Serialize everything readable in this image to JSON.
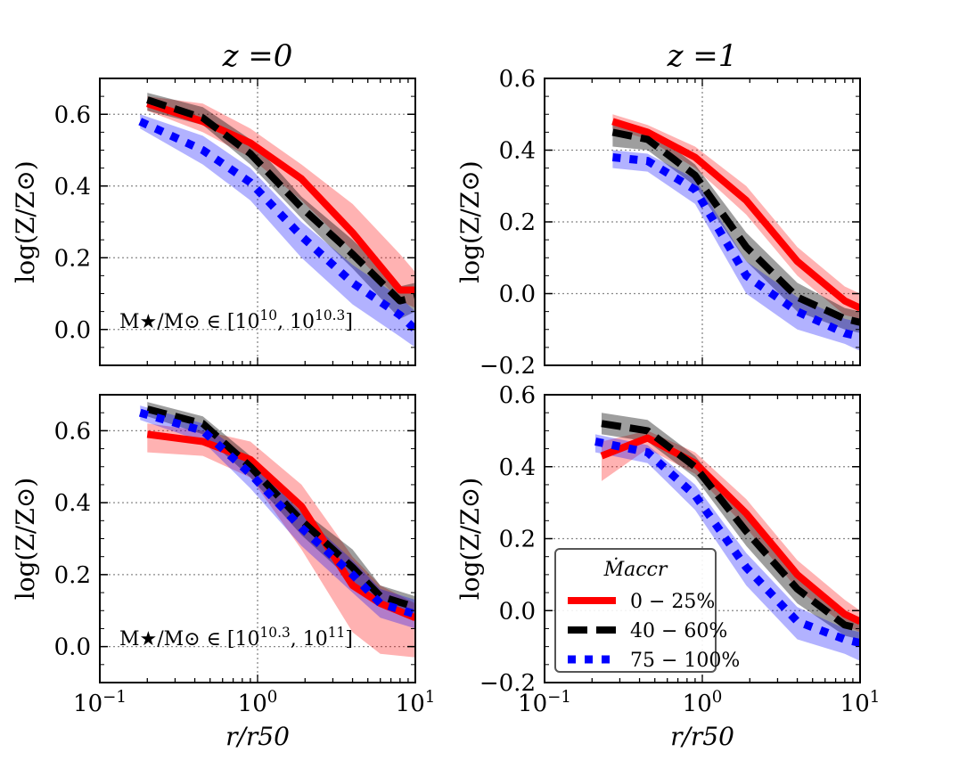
{
  "chart_data": [
    {
      "type": "line",
      "title": "z =0",
      "xlabel": "",
      "ylabel": "log(Z/Z⊙)",
      "xscale": "log",
      "xlim": [
        0.1,
        10
      ],
      "ylim": [
        -0.1,
        0.7
      ],
      "yticks": [
        0.0,
        0.2,
        0.4,
        0.6
      ],
      "ytick_labels": [
        "0.0",
        "0.2",
        "0.4",
        "0.6"
      ],
      "annotation": "M★/M⊙ ∈ [10^10, 10^10.3]",
      "series": [
        {
          "name": "0 − 25%",
          "color": "#ff0000",
          "style": "solid",
          "x": [
            0.2,
            0.45,
            0.9,
            1.9,
            4.0,
            8.0,
            10.0
          ],
          "y": [
            0.63,
            0.58,
            0.52,
            0.42,
            0.27,
            0.11,
            0.11
          ],
          "band_low": [
            0.61,
            0.55,
            0.48,
            0.36,
            0.22,
            0.08,
            0.06
          ],
          "band_high": [
            0.65,
            0.63,
            0.56,
            0.46,
            0.35,
            0.21,
            0.16
          ]
        },
        {
          "name": "40 − 60%",
          "color": "#000000",
          "style": "dashed",
          "x": [
            0.2,
            0.45,
            0.9,
            1.9,
            4.0,
            8.0,
            10.0
          ],
          "y": [
            0.64,
            0.59,
            0.49,
            0.34,
            0.21,
            0.08,
            0.09
          ],
          "band_low": [
            0.61,
            0.57,
            0.46,
            0.31,
            0.17,
            0.03,
            0.05
          ],
          "band_high": [
            0.66,
            0.62,
            0.53,
            0.37,
            0.25,
            0.12,
            0.13
          ]
        },
        {
          "name": "75 − 100%",
          "color": "#0000ff",
          "style": "dotted",
          "x": [
            0.18,
            0.45,
            0.9,
            1.9,
            4.0,
            8.0,
            10.0
          ],
          "y": [
            0.58,
            0.5,
            0.41,
            0.26,
            0.13,
            0.04,
            0.0
          ],
          "band_low": [
            0.56,
            0.46,
            0.36,
            0.2,
            0.07,
            -0.02,
            -0.05
          ],
          "band_high": [
            0.6,
            0.54,
            0.45,
            0.3,
            0.18,
            0.09,
            0.05
          ]
        }
      ]
    },
    {
      "type": "line",
      "title": "z =1",
      "xlabel": "",
      "ylabel": "log(Z/Z⊙)",
      "xscale": "log",
      "xlim": [
        0.1,
        10
      ],
      "ylim": [
        -0.2,
        0.6
      ],
      "yticks": [
        -0.2,
        0.0,
        0.2,
        0.4,
        0.6
      ],
      "ytick_labels": [
        "−0.2",
        "0.0",
        "0.2",
        "0.4",
        "0.6"
      ],
      "series": [
        {
          "name": "0 − 25%",
          "color": "#ff0000",
          "style": "solid",
          "x": [
            0.27,
            0.45,
            0.9,
            1.9,
            4.0,
            8.0,
            10.0
          ],
          "y": [
            0.48,
            0.45,
            0.38,
            0.26,
            0.09,
            -0.02,
            -0.04
          ],
          "band_low": [
            0.46,
            0.43,
            0.35,
            0.22,
            0.05,
            -0.06,
            -0.07
          ],
          "band_high": [
            0.5,
            0.47,
            0.41,
            0.3,
            0.13,
            0.02,
            0.0
          ]
        },
        {
          "name": "40 − 60%",
          "color": "#000000",
          "style": "dashed",
          "x": [
            0.27,
            0.45,
            0.9,
            1.9,
            4.0,
            8.0,
            10.0
          ],
          "y": [
            0.45,
            0.43,
            0.33,
            0.13,
            -0.01,
            -0.07,
            -0.08
          ],
          "band_low": [
            0.41,
            0.4,
            0.3,
            0.09,
            -0.05,
            -0.1,
            -0.11
          ],
          "band_high": [
            0.48,
            0.46,
            0.36,
            0.17,
            0.03,
            -0.04,
            -0.05
          ]
        },
        {
          "name": "75 − 100%",
          "color": "#0000ff",
          "style": "dotted",
          "x": [
            0.27,
            0.45,
            0.9,
            1.9,
            4.0,
            8.0,
            10.0
          ],
          "y": [
            0.38,
            0.37,
            0.29,
            0.05,
            -0.05,
            -0.11,
            -0.12
          ],
          "band_low": [
            0.35,
            0.34,
            0.25,
            0.0,
            -0.1,
            -0.14,
            -0.16
          ],
          "band_high": [
            0.4,
            0.39,
            0.32,
            0.09,
            -0.01,
            -0.07,
            -0.08
          ]
        }
      ]
    },
    {
      "type": "line",
      "title": "",
      "xlabel": "r/r50",
      "ylabel": "log(Z/Z⊙)",
      "xscale": "log",
      "xlim": [
        0.1,
        10
      ],
      "ylim": [
        -0.1,
        0.7
      ],
      "yticks": [
        0.0,
        0.2,
        0.4,
        0.6
      ],
      "ytick_labels": [
        "0.0",
        "0.2",
        "0.4",
        "0.6"
      ],
      "xticks": [
        0.1,
        1,
        10
      ],
      "annotation": "M★/M⊙ ∈ [10^10.3, 10^11]",
      "series": [
        {
          "name": "0 − 25%",
          "color": "#ff0000",
          "style": "solid",
          "x": [
            0.2,
            0.45,
            0.9,
            1.9,
            4.0,
            6.0,
            10.0
          ],
          "y": [
            0.59,
            0.57,
            0.52,
            0.39,
            0.17,
            0.12,
            0.08
          ],
          "band_low": [
            0.54,
            0.53,
            0.47,
            0.27,
            0.04,
            -0.02,
            -0.03
          ],
          "band_high": [
            0.62,
            0.6,
            0.57,
            0.45,
            0.25,
            0.17,
            0.12
          ]
        },
        {
          "name": "40 − 60%",
          "color": "#000000",
          "style": "dashed",
          "x": [
            0.2,
            0.45,
            0.9,
            1.9,
            4.0,
            6.0,
            10.0
          ],
          "y": [
            0.66,
            0.62,
            0.5,
            0.35,
            0.22,
            0.14,
            0.11
          ],
          "band_low": [
            0.64,
            0.59,
            0.47,
            0.31,
            0.18,
            0.11,
            0.08
          ],
          "band_high": [
            0.68,
            0.64,
            0.53,
            0.38,
            0.27,
            0.17,
            0.14
          ]
        },
        {
          "name": "75 − 100%",
          "color": "#0000ff",
          "style": "dotted",
          "x": [
            0.18,
            0.45,
            0.9,
            1.9,
            4.0,
            6.0,
            10.0
          ],
          "y": [
            0.65,
            0.6,
            0.48,
            0.33,
            0.2,
            0.12,
            0.09
          ],
          "band_low": [
            0.63,
            0.57,
            0.44,
            0.28,
            0.15,
            0.08,
            0.05
          ],
          "band_high": [
            0.67,
            0.62,
            0.52,
            0.37,
            0.24,
            0.16,
            0.13
          ]
        }
      ]
    },
    {
      "type": "line",
      "title": "",
      "xlabel": "r/r50",
      "ylabel": "log(Z/Z⊙)",
      "xscale": "log",
      "xlim": [
        0.1,
        10
      ],
      "ylim": [
        -0.2,
        0.6
      ],
      "yticks": [
        -0.2,
        0.0,
        0.2,
        0.4,
        0.6
      ],
      "ytick_labels": [
        "−0.2",
        "0.0",
        "0.2",
        "0.4",
        "0.6"
      ],
      "xticks": [
        0.1,
        1,
        10
      ],
      "series": [
        {
          "name": "0 − 25%",
          "color": "#ff0000",
          "style": "solid",
          "x": [
            0.23,
            0.45,
            0.9,
            1.9,
            4.0,
            8.0,
            10.0
          ],
          "y": [
            0.43,
            0.48,
            0.41,
            0.27,
            0.1,
            -0.01,
            -0.03
          ],
          "band_low": [
            0.36,
            0.45,
            0.38,
            0.23,
            0.06,
            -0.04,
            -0.06
          ],
          "band_high": [
            0.47,
            0.5,
            0.44,
            0.31,
            0.14,
            0.03,
            0.0
          ]
        },
        {
          "name": "40 − 60%",
          "color": "#000000",
          "style": "dashed",
          "x": [
            0.23,
            0.45,
            0.9,
            1.9,
            4.0,
            8.0,
            10.0
          ],
          "y": [
            0.52,
            0.5,
            0.4,
            0.22,
            0.06,
            -0.04,
            -0.05
          ],
          "band_low": [
            0.49,
            0.47,
            0.37,
            0.18,
            0.02,
            -0.07,
            -0.08
          ],
          "band_high": [
            0.55,
            0.53,
            0.43,
            0.26,
            0.1,
            0.0,
            -0.02
          ]
        },
        {
          "name": "75 − 100%",
          "color": "#0000ff",
          "style": "dotted",
          "x": [
            0.21,
            0.45,
            0.9,
            1.9,
            4.0,
            8.0,
            10.0
          ],
          "y": [
            0.47,
            0.44,
            0.32,
            0.12,
            -0.03,
            -0.08,
            -0.09
          ],
          "band_low": [
            0.44,
            0.41,
            0.28,
            0.07,
            -0.08,
            -0.12,
            -0.14
          ],
          "band_high": [
            0.49,
            0.46,
            0.35,
            0.16,
            0.01,
            -0.05,
            -0.06
          ]
        }
      ],
      "legend": {
        "placement": "lower-left",
        "title": "Ṁaccr",
        "entries": [
          "0 − 25%",
          "40 − 60%",
          "75 − 100%"
        ]
      }
    }
  ]
}
